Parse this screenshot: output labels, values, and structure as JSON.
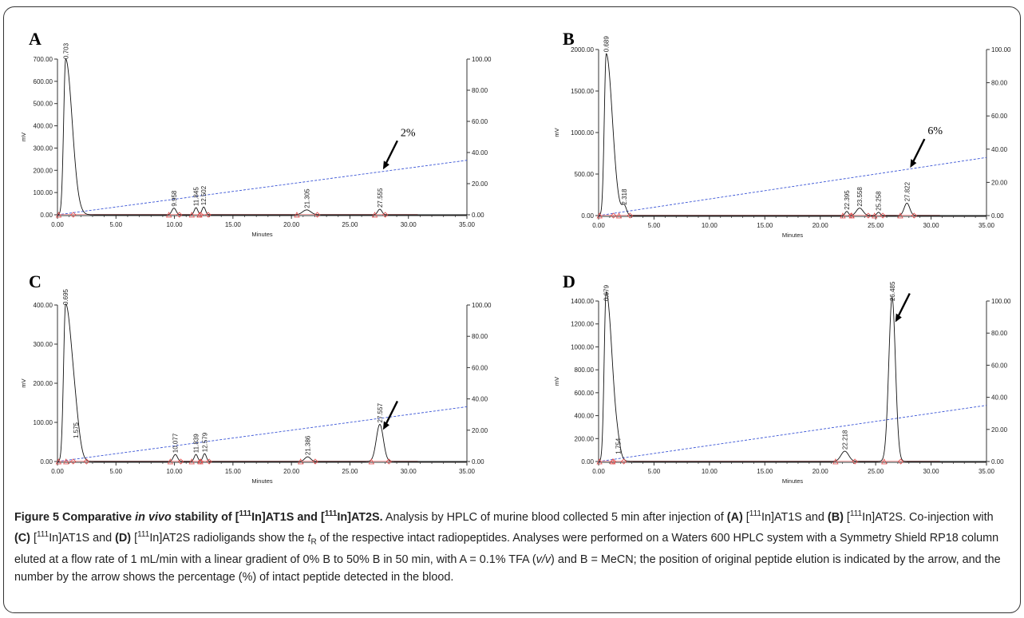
{
  "figure": {
    "caption_parts": [
      {
        "t": "Figure 5 Comparative ",
        "b": true
      },
      {
        "t": "in vivo",
        "b": true,
        "i": true
      },
      {
        "t": " stability of [",
        "b": true
      },
      {
        "t": "111",
        "b": true,
        "sup": true
      },
      {
        "t": "In]AT1S and [",
        "b": true
      },
      {
        "t": "111",
        "b": true,
        "sup": true
      },
      {
        "t": "In]AT2S.",
        "b": true
      },
      {
        "t": " Analysis by HPLC of murine blood collected 5 min after injection of "
      },
      {
        "t": "(A)",
        "b": true
      },
      {
        "t": " ["
      },
      {
        "t": "111",
        "sup": true
      },
      {
        "t": "In]AT1S and "
      },
      {
        "t": "(B)",
        "b": true
      },
      {
        "t": " ["
      },
      {
        "t": "111",
        "sup": true
      },
      {
        "t": "In]AT2S. Co-injection with "
      },
      {
        "t": "(C)",
        "b": true
      },
      {
        "t": " ["
      },
      {
        "t": "111",
        "sup": true
      },
      {
        "t": "In]AT1S and "
      },
      {
        "t": "(D)",
        "b": true
      },
      {
        "t": " ["
      },
      {
        "t": "111",
        "sup": true
      },
      {
        "t": "In]AT2S radioligands show the "
      },
      {
        "t": "t",
        "i": true
      },
      {
        "t": "R",
        "sub": true
      },
      {
        "t": " of the respective intact radiopeptides. Analyses were performed on a Waters 600 HPLC system with a Symmetry Shield RP18 column eluted at a flow rate of 1 mL/min with a linear gradient of 0% B to 50% B in 50 min, with A = 0.1% TFA ("
      },
      {
        "t": "v/v",
        "i": true
      },
      {
        "t": ") and B = MeCN; the position of original peptide elution is indicated by the arrow, and the number by the arrow shows the percentage (%) of intact peptide detected in the blood."
      }
    ]
  },
  "chart_data": [
    {
      "panel": "A",
      "type": "line",
      "xlabel": "Minutes",
      "ylabel": "mV",
      "xlim": [
        0,
        35
      ],
      "ylim": [
        0,
        700
      ],
      "y2lim": [
        0,
        100
      ],
      "x_ticks": [
        "0.00",
        "5.00",
        "10.00",
        "15.00",
        "20.00",
        "25.00",
        "30.00",
        "35.00"
      ],
      "y_ticks": [
        "0.00",
        "100.00",
        "200.00",
        "300.00",
        "400.00",
        "500.00",
        "600.00",
        "700.00"
      ],
      "y2_ticks": [
        "0.00",
        "20.00",
        "40.00",
        "60.00",
        "80.00",
        "100.00"
      ],
      "peaks": [
        {
          "rt": 0.703,
          "label": "0.703",
          "height": 700,
          "width": 0.25
        },
        {
          "rt": 9.958,
          "label": "9.958",
          "height": 30,
          "width": 0.18
        },
        {
          "rt": 11.845,
          "label": "11.845",
          "height": 32,
          "width": 0.15
        },
        {
          "rt": 12.502,
          "label": "12.502",
          "height": 35,
          "width": 0.15
        },
        {
          "rt": 21.305,
          "label": "21.305",
          "height": 22,
          "width": 0.35
        },
        {
          "rt": 27.555,
          "label": "27.555",
          "height": 25,
          "width": 0.18
        }
      ],
      "gradient_end": 35,
      "arrow": {
        "rt": 27.555,
        "text": "2%"
      }
    },
    {
      "panel": "B",
      "type": "line",
      "xlabel": "Minutes",
      "ylabel": "mV",
      "xlim": [
        0,
        35
      ],
      "ylim": [
        0,
        2000
      ],
      "y2lim": [
        0,
        100
      ],
      "x_ticks": [
        "0.00",
        "5.00",
        "10.00",
        "15.00",
        "20.00",
        "25.00",
        "30.00",
        "35.00"
      ],
      "y_ticks": [
        "0.00",
        "500.00",
        "1000.00",
        "1500.00",
        "2000.00"
      ],
      "y2_ticks": [
        "0.00",
        "20.00",
        "40.00",
        "60.00",
        "80.00",
        "100.00"
      ],
      "peaks": [
        {
          "rt": 0.689,
          "label": "0.689",
          "height": 1950,
          "width": 0.25
        },
        {
          "rt": 2.318,
          "label": "2.318",
          "height": 110,
          "width": 0.2
        },
        {
          "rt": 22.395,
          "label": "22.395",
          "height": 50,
          "width": 0.15
        },
        {
          "rt": 23.558,
          "label": "23.558",
          "height": 90,
          "width": 0.3
        },
        {
          "rt": 25.258,
          "label": "25.258",
          "height": 40,
          "width": 0.15
        },
        {
          "rt": 27.822,
          "label": "27.822",
          "height": 150,
          "width": 0.25
        }
      ],
      "arrow": {
        "rt": 27.822,
        "text": "6%"
      }
    },
    {
      "panel": "C",
      "type": "line",
      "xlabel": "Minutes",
      "ylabel": "mV",
      "xlim": [
        0,
        35
      ],
      "ylim": [
        0,
        400
      ],
      "y2lim": [
        0,
        100
      ],
      "x_ticks": [
        "0.00",
        "5.00",
        "10.00",
        "15.00",
        "20.00",
        "25.00",
        "30.00",
        "35.00"
      ],
      "y_ticks": [
        "0.00",
        "100.00",
        "200.00",
        "300.00",
        "400.00"
      ],
      "y2_ticks": [
        "0.00",
        "20.00",
        "40.00",
        "60.00",
        "80.00",
        "100.00"
      ],
      "peaks": [
        {
          "rt": 0.695,
          "label": "0.695",
          "height": 400,
          "width": 0.25
        },
        {
          "rt": 1.575,
          "label": "1.575",
          "height": 55,
          "width": 0.35
        },
        {
          "rt": 10.077,
          "label": "10.077",
          "height": 18,
          "width": 0.18
        },
        {
          "rt": 11.839,
          "label": "11.839",
          "height": 18,
          "width": 0.15
        },
        {
          "rt": 12.579,
          "label": "12.579",
          "height": 20,
          "width": 0.15
        },
        {
          "rt": 21.386,
          "label": "21.386",
          "height": 12,
          "width": 0.25
        },
        {
          "rt": 27.557,
          "label": "27.557",
          "height": 95,
          "width": 0.3
        }
      ],
      "arrow": {
        "rt": 27.557,
        "text": ""
      }
    },
    {
      "panel": "D",
      "type": "line",
      "xlabel": "Minutes",
      "ylabel": "mV",
      "xlim": [
        0,
        35
      ],
      "ylim": [
        0,
        1400
      ],
      "y2lim": [
        0,
        100
      ],
      "x_ticks": [
        "0.00",
        "5.00",
        "10.00",
        "15.00",
        "20.00",
        "25.00",
        "30.00",
        "35.00"
      ],
      "y_ticks": [
        "0.00",
        "200.00",
        "400.00",
        "600.00",
        "800.00",
        "1000.00",
        "1200.00",
        "1400.00"
      ],
      "y2_ticks": [
        "0.00",
        "20.00",
        "40.00",
        "60.00",
        "80.00",
        "100.00"
      ],
      "peaks": [
        {
          "rt": 0.679,
          "label": "0.679",
          "height": 1480,
          "width": 0.25
        },
        {
          "rt": 1.754,
          "label": "1.754",
          "height": 50,
          "width": 0.2
        },
        {
          "rt": 22.218,
          "label": "22.218",
          "height": 90,
          "width": 0.35
        },
        {
          "rt": 26.485,
          "label": "26.485",
          "height": 1430,
          "width": 0.3
        }
      ],
      "arrow": {
        "rt": 26.485,
        "text": ""
      }
    }
  ]
}
